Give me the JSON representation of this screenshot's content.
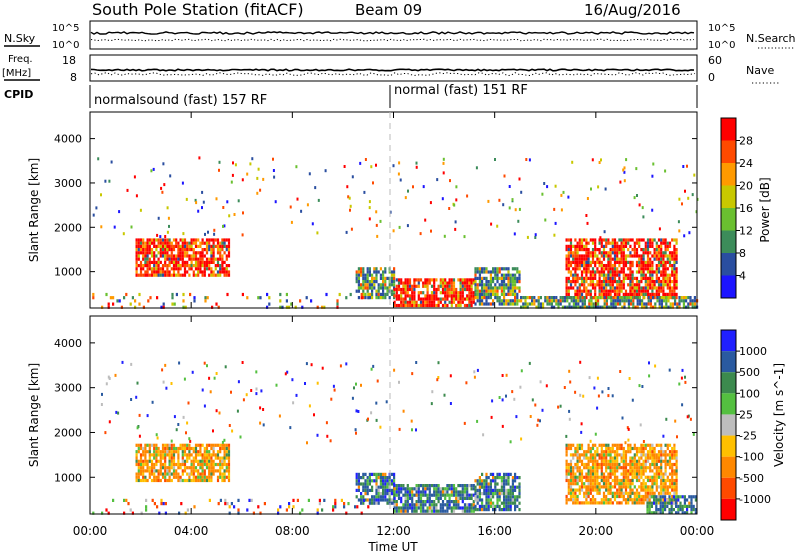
{
  "header": {
    "station": "South Pole Station (fitACF)",
    "beam": "Beam 09",
    "date": "16/Aug/2016"
  },
  "aux_labels": {
    "nsky": "N.Sky",
    "nsky_hi": "10^5",
    "nsky_lo": "10^0",
    "nsearch": "N.Search",
    "nsearch_hi": "10^5",
    "nsearch_lo": "10^0",
    "freq": "Freq.",
    "freq_unit": "[MHz]",
    "freq_hi": "18",
    "freq_lo": "8",
    "nave": "Nave",
    "nave_hi": "60",
    "nave_lo": "0",
    "cpid": "CPID"
  },
  "cpid_segments": [
    {
      "label": "normalsound (fast) 157 RF",
      "start_hour": 0
    },
    {
      "label": "normal (fast) 151 RF",
      "start_hour": 12
    }
  ],
  "power_scale": {
    "label": "Power [dB]",
    "ticks": [
      "28",
      "24",
      "20",
      "16",
      "12",
      "8",
      "4"
    ],
    "colors": [
      "#ff0000",
      "#ff4a00",
      "#ff9a00",
      "#c8c800",
      "#6ac030",
      "#3c8c5a",
      "#2a4ea0",
      "#1c14ff"
    ]
  },
  "velocity_scale": {
    "label": "Velocity [m s^-1]",
    "ticks": [
      "1000",
      "500",
      "100",
      "25",
      "-25",
      "-100",
      "-500",
      "-1000"
    ],
    "colors": [
      "#2020ff",
      "#2a5aa0",
      "#3c8a4e",
      "#54c040",
      "#bdbdbd",
      "#ffc000",
      "#ff8800",
      "#ff4a00",
      "#ff0000"
    ]
  },
  "chart_data": [
    {
      "type": "heatmap",
      "title": "Power",
      "xlabel": "",
      "ylabel": "Slant Range [km]",
      "xlim_hours": [
        0,
        24
      ],
      "ylim": [
        180,
        4600
      ],
      "yticks": [
        1000,
        2000,
        3000,
        4000
      ],
      "regions": [
        {
          "t0": 1.8,
          "t1": 5.5,
          "r0": 950,
          "r1": 1750,
          "level": "high"
        },
        {
          "t0": 10.5,
          "t1": 12.0,
          "r0": 400,
          "r1": 1100,
          "level": "low"
        },
        {
          "t0": 12.0,
          "t1": 15.2,
          "r0": 250,
          "r1": 850,
          "level": "high"
        },
        {
          "t0": 15.2,
          "t1": 17.0,
          "r0": 300,
          "r1": 1100,
          "level": "low"
        },
        {
          "t0": 18.8,
          "t1": 23.2,
          "r0": 400,
          "r1": 1750,
          "level": "high"
        },
        {
          "t0": 0.0,
          "t1": 11.0,
          "r0": 200,
          "r1": 520,
          "level": "scatter"
        },
        {
          "t0": 17.0,
          "t1": 24.0,
          "r0": 200,
          "r1": 450,
          "level": "low"
        }
      ]
    },
    {
      "type": "heatmap",
      "title": "Velocity",
      "xlabel": "Time UT",
      "ylabel": "Slant Range [km]",
      "xlim_hours": [
        0,
        24
      ],
      "ylim": [
        180,
        4600
      ],
      "yticks": [
        1000,
        2000,
        3000,
        4000
      ],
      "xticks": [
        "00:00",
        "04:00",
        "08:00",
        "12:00",
        "16:00",
        "20:00",
        "00:00"
      ],
      "regions": [
        {
          "t0": 1.8,
          "t1": 5.5,
          "r0": 950,
          "r1": 1750,
          "level": "away"
        },
        {
          "t0": 10.5,
          "t1": 12.0,
          "r0": 400,
          "r1": 1100,
          "level": "toward"
        },
        {
          "t0": 12.0,
          "t1": 15.2,
          "r0": 250,
          "r1": 850,
          "level": "toward"
        },
        {
          "t0": 15.2,
          "t1": 17.0,
          "r0": 300,
          "r1": 1100,
          "level": "toward"
        },
        {
          "t0": 18.8,
          "t1": 23.2,
          "r0": 400,
          "r1": 1750,
          "level": "away"
        },
        {
          "t0": 0.0,
          "t1": 11.0,
          "r0": 200,
          "r1": 520,
          "level": "scatter"
        },
        {
          "t0": 22.0,
          "t1": 24.0,
          "r0": 200,
          "r1": 600,
          "level": "toward"
        }
      ]
    }
  ]
}
